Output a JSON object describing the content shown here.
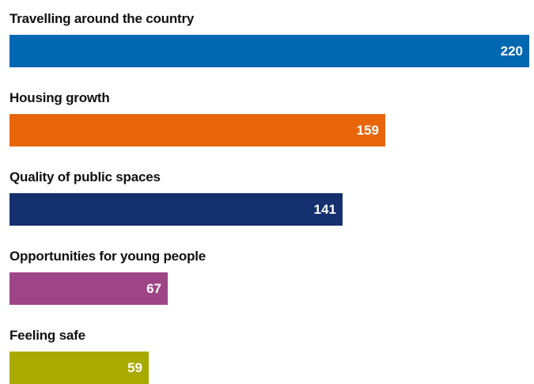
{
  "chart_data": {
    "type": "bar",
    "orientation": "horizontal",
    "categories": [
      "Travelling around the country",
      "Housing growth",
      "Quality of public spaces",
      "Opportunities for young people",
      "Feeling safe"
    ],
    "values": [
      220,
      159,
      141,
      67,
      59
    ],
    "colors": [
      "#0067b1",
      "#e8650a",
      "#14306e",
      "#9e4587",
      "#a9aa00"
    ],
    "title": "",
    "xlabel": "",
    "ylabel": "",
    "xlim": [
      0,
      220
    ],
    "grid": false,
    "data_labels": true
  }
}
